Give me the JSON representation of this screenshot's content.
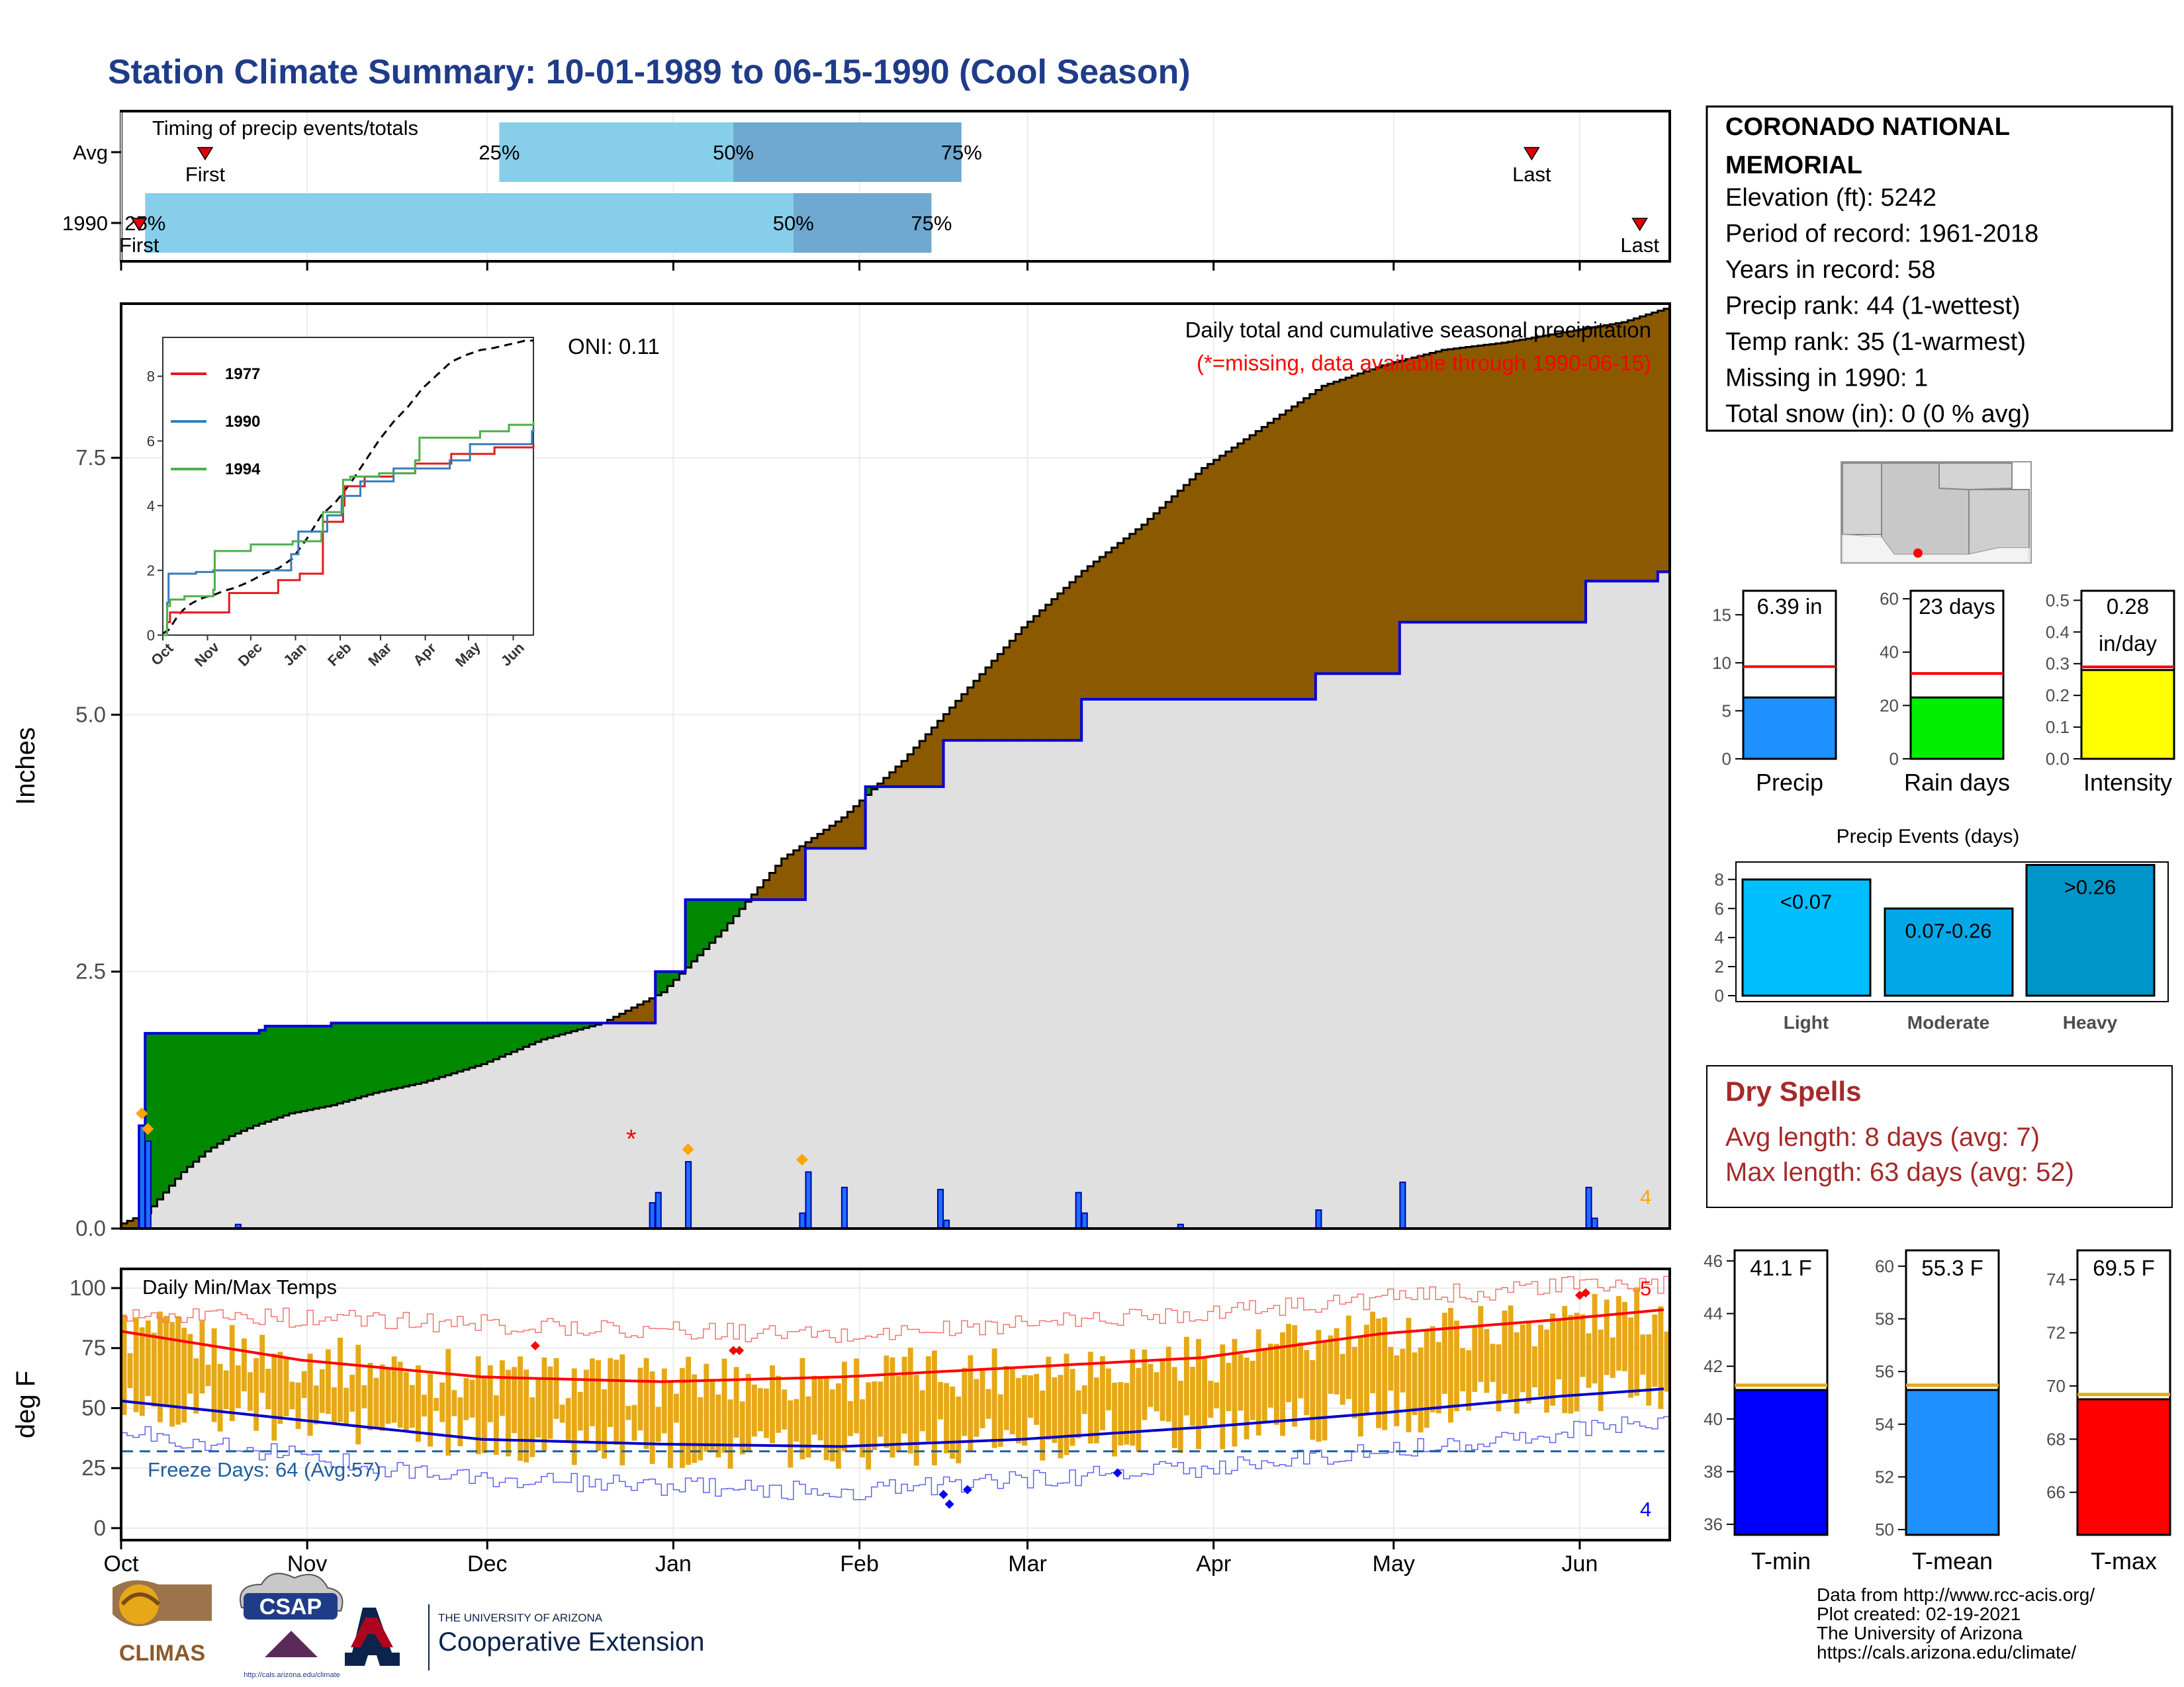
{
  "title": "Station Climate Summary: 10-01-1989 to 06-15-1990 (Cool Season)",
  "colors": {
    "title": "#1f3c88",
    "avg_fill": "#e0e0e0",
    "surplus": "#8b5a00",
    "deficit": "#008800",
    "cum_line": "#0000dd",
    "bars_q1": "#87ceeb",
    "bars_q2": "#6fa8d0",
    "temp_bar": "#e6a817",
    "dry_spells": "#a52a2a"
  },
  "timing": {
    "title": "Timing of precip events/totals",
    "rows": [
      {
        "label": "Avg",
        "first_label": "First",
        "last_label": "Last",
        "first_day": 14,
        "last_day": 235,
        "q25_label": "25%",
        "q50_label": "50%",
        "q75_label": "75%",
        "q25_day": 63,
        "q50_day": 102,
        "q75_day": 140
      },
      {
        "label": "1990",
        "first_label": "First",
        "last_label": "Last",
        "first_day": 3,
        "last_day": 253,
        "q25_label": "25%",
        "q50_label": "50%",
        "q75_label": "75%",
        "q25_day": 4,
        "q50_day": 112,
        "q75_day": 135
      }
    ]
  },
  "precip_panel": {
    "ylabel": "Inches",
    "y_ticks": [
      "0.0",
      "2.5",
      "5.0",
      "7.5"
    ],
    "header": "Daily total and cumulative seasonal precipitation",
    "missing_note": "(*=missing, data available through 1990-06-15)",
    "oni": "ONI: 0.11",
    "count_label": "4",
    "missing_marker": "*"
  },
  "inset": {
    "y_ticks": [
      "0",
      "2",
      "4",
      "6",
      "8"
    ],
    "x_ticks": [
      "Oct",
      "Nov",
      "Dec",
      "Jan",
      "Feb",
      "Mar",
      "Apr",
      "May",
      "Jun"
    ],
    "legend": [
      {
        "name": "1977",
        "color": "#e41a1c"
      },
      {
        "name": "1990",
        "color": "#377eb8"
      },
      {
        "name": "1994",
        "color": "#4daf4a"
      }
    ]
  },
  "temp_panel": {
    "ylabel": "deg F",
    "title": "Daily Min/Max Temps",
    "y_ticks": [
      "0",
      "25",
      "50",
      "75",
      "100"
    ],
    "freeze_text": "Freeze Days: 64 (Avg:57)",
    "count_max": "5",
    "count_min": "4"
  },
  "months": [
    "Oct",
    "Nov",
    "Dec",
    "Jan",
    "Feb",
    "Mar",
    "Apr",
    "May",
    "Jun"
  ],
  "station": {
    "name": "CORONADO NATIONAL MEMORIAL",
    "lines": [
      "Elevation (ft): 5242",
      "Period of record: 1961-2018",
      "Years in record: 58",
      "Precip rank: 44 (1-wettest)",
      "Temp rank: 35 (1-warmest)",
      "Missing in 1990: 1",
      "Total snow (in): 0 (0 % avg)"
    ]
  },
  "summary_bars": [
    {
      "label": "Precip",
      "value_text": "6.39 in",
      "ticks": [
        "0",
        "5",
        "10",
        "15"
      ],
      "color": "#1e90ff"
    },
    {
      "label": "Rain days",
      "value_text": "23 days",
      "ticks": [
        "0",
        "20",
        "40",
        "60"
      ],
      "color": "#00ee00"
    },
    {
      "label": "Intensity",
      "value_text": "0.28",
      "value_text2": "in/day",
      "ticks": [
        "0.0",
        "0.1",
        "0.2",
        "0.3",
        "0.4",
        "0.5"
      ],
      "color": "#ffff00"
    }
  ],
  "events": {
    "title": "Precip Events (days)",
    "y_ticks": [
      "0",
      "2",
      "4",
      "6",
      "8"
    ],
    "bars": [
      {
        "category": "Light",
        "label": "<0.07",
        "color": "#00bfff"
      },
      {
        "category": "Moderate",
        "label": "0.07-0.26",
        "color": "#00a8e8"
      },
      {
        "category": "Heavy",
        "label": ">0.26",
        "color": "#0095c8"
      }
    ]
  },
  "dry_spells": {
    "title": "Dry Spells",
    "avg": "Avg length: 8 days (avg: 7)",
    "max": "Max length: 63 days (avg: 52)"
  },
  "temp_summary": [
    {
      "label": "T-min",
      "value_text": "41.1 F",
      "ticks": [
        "36",
        "38",
        "40",
        "42",
        "44",
        "46"
      ],
      "color": "#0000ff"
    },
    {
      "label": "T-mean",
      "value_text": "55.3 F",
      "ticks": [
        "50",
        "52",
        "54",
        "56",
        "58",
        "60"
      ],
      "color": "#1e90ff"
    },
    {
      "label": "T-max",
      "value_text": "69.5 F",
      "ticks": [
        "66",
        "68",
        "70",
        "72",
        "74"
      ],
      "color": "#ff0000"
    }
  ],
  "credits": [
    "Data from http://www.rcc-acis.org/",
    "Plot created: 02-19-2021",
    "The University of Arizona",
    "https://cals.arizona.edu/climate/"
  ],
  "logos": {
    "climas": "CLIMAS",
    "csap": "CSAP",
    "csap_url": "http://cals.arizona.edu/climate",
    "ua_top": "THE UNIVERSITY OF ARIZONA",
    "ua_bottom": "Cooperative Extension"
  },
  "chart_data": [
    {
      "type": "line",
      "title": "Daily total and cumulative seasonal precipitation",
      "ylabel": "Inches",
      "ylim": [
        0,
        9.0
      ],
      "x_range_days": [
        0,
        257
      ],
      "series": [
        {
          "name": "Average cumulative",
          "x": [
            0,
            4,
            7,
            10,
            14,
            18,
            22,
            28,
            35,
            42,
            50,
            60,
            70,
            80,
            90,
            100,
            110,
            120,
            130,
            140,
            150,
            160,
            170,
            180,
            190,
            200,
            210,
            220,
            230,
            240,
            250,
            257
          ],
          "values": [
            0.05,
            0.15,
            0.35,
            0.55,
            0.75,
            0.9,
            1.0,
            1.12,
            1.2,
            1.32,
            1.42,
            1.6,
            1.84,
            2.0,
            2.3,
            2.9,
            3.6,
            4.0,
            4.55,
            5.2,
            5.85,
            6.4,
            6.85,
            7.4,
            7.8,
            8.2,
            8.4,
            8.55,
            8.62,
            8.72,
            8.82,
            8.95
          ]
        },
        {
          "name": "1990 cumulative",
          "x": [
            0,
            2,
            3,
            4,
            23,
            24,
            35,
            88,
            89,
            93,
            94,
            113,
            114,
            123,
            124,
            136,
            137,
            159,
            160,
            198,
            199,
            212,
            213,
            243,
            244,
            255,
            256,
            257
          ],
          "values": [
            0.0,
            0.0,
            1.0,
            1.9,
            1.93,
            1.97,
            2.0,
            2.0,
            2.5,
            2.5,
            3.2,
            3.2,
            3.7,
            3.7,
            4.3,
            4.3,
            4.75,
            4.75,
            5.15,
            5.15,
            5.4,
            5.4,
            5.9,
            5.9,
            6.3,
            6.3,
            6.39,
            6.39
          ]
        },
        {
          "name": "Daily precip",
          "x": [
            3,
            4,
            19,
            88,
            89,
            94,
            113,
            114,
            120,
            136,
            137,
            159,
            160,
            176,
            199,
            213,
            244,
            245
          ],
          "values": [
            1.0,
            0.85,
            0.04,
            0.25,
            0.35,
            0.65,
            0.15,
            0.55,
            0.4,
            0.38,
            0.08,
            0.35,
            0.15,
            0.04,
            0.18,
            0.45,
            0.4,
            0.1
          ]
        }
      ]
    },
    {
      "type": "line",
      "title": "Daily Min/Max Temps",
      "ylabel": "deg F",
      "ylim": [
        -5,
        108
      ],
      "series": [
        {
          "name": "Avg max",
          "x": [
            0,
            30,
            60,
            90,
            120,
            150,
            180,
            210,
            240,
            257
          ],
          "values": [
            82,
            70,
            63,
            61,
            63,
            67,
            71,
            81,
            87,
            91
          ]
        },
        {
          "name": "Avg min",
          "x": [
            0,
            30,
            60,
            90,
            120,
            150,
            180,
            210,
            240,
            257
          ],
          "values": [
            53,
            45,
            37,
            35,
            34,
            37,
            42,
            48,
            55,
            58
          ]
        },
        {
          "name": "Record max",
          "x": [
            0,
            60,
            120,
            180,
            240,
            257
          ],
          "values": [
            90,
            85,
            80,
            90,
            101,
            101
          ]
        },
        {
          "name": "Record min",
          "x": [
            0,
            60,
            120,
            180,
            240,
            257
          ],
          "values": [
            40,
            20,
            15,
            25,
            40,
            45
          ]
        }
      ],
      "freeze_line": 32
    }
  ]
}
